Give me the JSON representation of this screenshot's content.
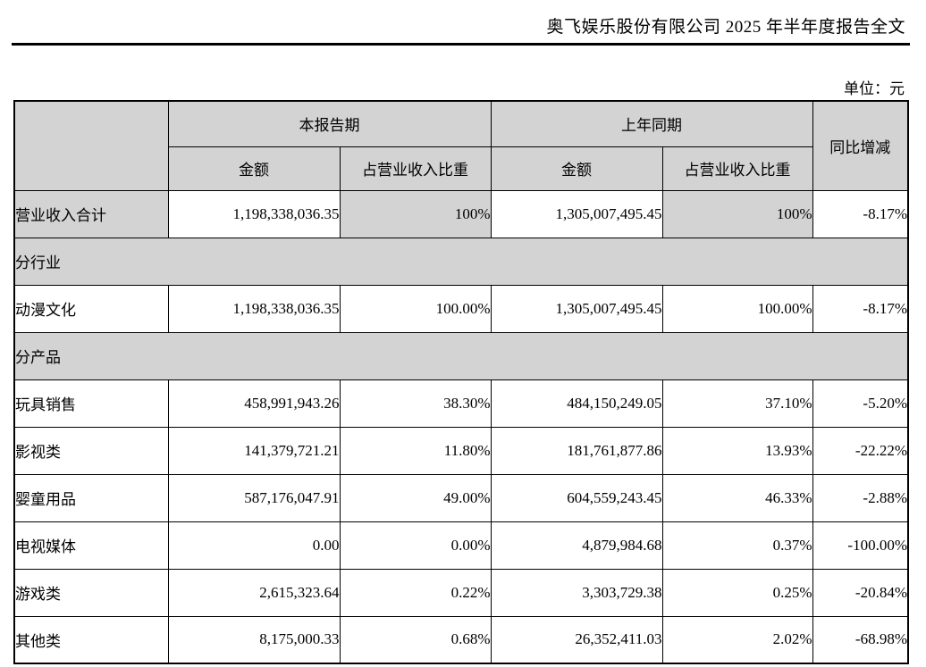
{
  "page": {
    "header_title": "奥飞娱乐股份有限公司 2025 年半年度报告全文",
    "unit_label": "单位：元"
  },
  "colors": {
    "shade_bg": "#d3d3d3",
    "border": "#000000"
  },
  "table": {
    "header": {
      "corner": "",
      "current_period": "本报告期",
      "prior_period": "上年同期",
      "yoy": "同比增减",
      "amount": "金额",
      "pct_of_revenue": "占营业收入比重"
    },
    "rows": [
      {
        "type": "data",
        "label": "营业收入合计",
        "amount_current": "1,198,338,036.35",
        "pct_current": "100%",
        "amount_prior": "1,305,007,495.45",
        "pct_prior": "100%",
        "yoy": "-8.17%",
        "shaded_cells": [
          0,
          2,
          4
        ]
      },
      {
        "type": "section",
        "label": "分行业"
      },
      {
        "type": "data",
        "label": "动漫文化",
        "amount_current": "1,198,338,036.35",
        "pct_current": "100.00%",
        "amount_prior": "1,305,007,495.45",
        "pct_prior": "100.00%",
        "yoy": "-8.17%",
        "shaded_cells": []
      },
      {
        "type": "section",
        "label": "分产品"
      },
      {
        "type": "data",
        "label": "玩具销售",
        "amount_current": "458,991,943.26",
        "pct_current": "38.30%",
        "amount_prior": "484,150,249.05",
        "pct_prior": "37.10%",
        "yoy": "-5.20%",
        "shaded_cells": []
      },
      {
        "type": "data",
        "label": "影视类",
        "amount_current": "141,379,721.21",
        "pct_current": "11.80%",
        "amount_prior": "181,761,877.86",
        "pct_prior": "13.93%",
        "yoy": "-22.22%",
        "shaded_cells": []
      },
      {
        "type": "data",
        "label": "婴童用品",
        "amount_current": "587,176,047.91",
        "pct_current": "49.00%",
        "amount_prior": "604,559,243.45",
        "pct_prior": "46.33%",
        "yoy": "-2.88%",
        "shaded_cells": []
      },
      {
        "type": "data",
        "label": "电视媒体",
        "amount_current": "0.00",
        "pct_current": "0.00%",
        "amount_prior": "4,879,984.68",
        "pct_prior": "0.37%",
        "yoy": "-100.00%",
        "shaded_cells": []
      },
      {
        "type": "data",
        "label": "游戏类",
        "amount_current": "2,615,323.64",
        "pct_current": "0.22%",
        "amount_prior": "3,303,729.38",
        "pct_prior": "0.25%",
        "yoy": "-20.84%",
        "shaded_cells": []
      },
      {
        "type": "data",
        "label": "其他类",
        "amount_current": "8,175,000.33",
        "pct_current": "0.68%",
        "amount_prior": "26,352,411.03",
        "pct_prior": "2.02%",
        "yoy": "-68.98%",
        "shaded_cells": []
      }
    ]
  }
}
